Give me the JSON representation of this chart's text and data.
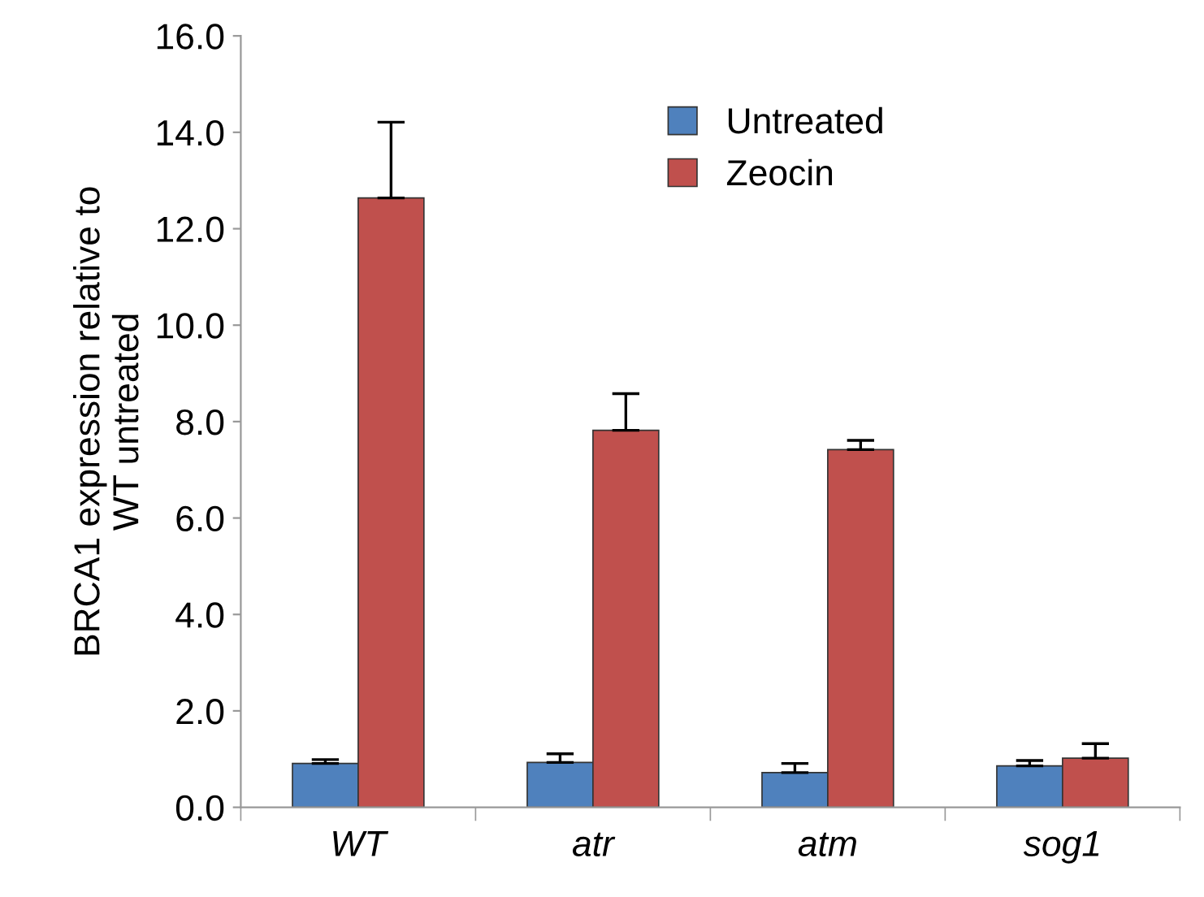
{
  "chart_data": {
    "type": "bar",
    "ylabel": "BRCA1 expression relative to\nWT untreated",
    "categories": [
      "WT",
      "atr",
      "atm",
      "sog1"
    ],
    "series": [
      {
        "name": "Untreated",
        "color": "#4f81bd",
        "values": [
          0.91,
          0.93,
          0.72,
          0.86
        ],
        "errors": [
          [
            0.91,
            0.99
          ],
          [
            0.93,
            1.11
          ],
          [
            0.72,
            0.91
          ],
          [
            0.86,
            0.97
          ]
        ]
      },
      {
        "name": "Zeocin",
        "color": "#c0504d",
        "values": [
          12.64,
          7.82,
          7.42,
          1.02
        ],
        "errors": [
          [
            12.64,
            14.21
          ],
          [
            7.82,
            8.58
          ],
          [
            7.42,
            7.61
          ],
          [
            1.02,
            1.32
          ]
        ]
      }
    ],
    "ylim": [
      0,
      16
    ],
    "yticks": [
      {
        "value": 0,
        "label": "0.0"
      },
      {
        "value": 2,
        "label": "2.0"
      },
      {
        "value": 4,
        "label": "4.0"
      },
      {
        "value": 6,
        "label": "6.0"
      },
      {
        "value": 8,
        "label": "8.0"
      },
      {
        "value": 10,
        "label": "10.0"
      },
      {
        "value": 12,
        "label": "12.0"
      },
      {
        "value": 14,
        "label": "14.0"
      },
      {
        "value": 16,
        "label": "16.0"
      }
    ],
    "legend": "top right",
    "grid": false
  }
}
